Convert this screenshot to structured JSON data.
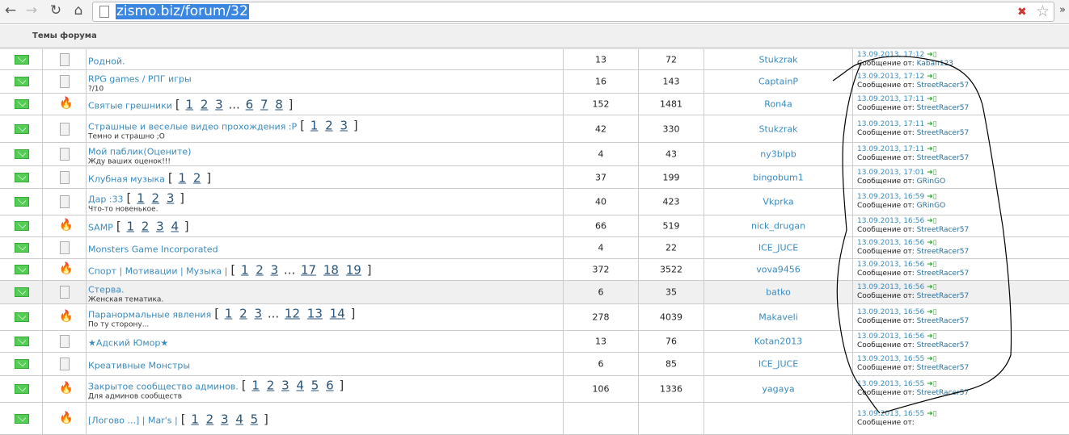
{
  "browser": {
    "url": "zismo.biz/forum/32"
  },
  "header": {
    "title": "Темы форума"
  },
  "last_post_by_label": "Сообщение от:",
  "topics": [
    {
      "icon": "doc",
      "title": "Родной.",
      "subtitle": "",
      "pages": [],
      "replies": "13",
      "views": "72",
      "author": "Stukzrak",
      "last_date": "13.09.2013, 17:12",
      "last_user": "Kaban123"
    },
    {
      "icon": "doc",
      "title": "RPG games / РПГ игры",
      "subtitle": "?/10",
      "pages": [],
      "replies": "16",
      "views": "143",
      "author": "CaptainP",
      "last_date": "13.09.2013, 17:12",
      "last_user": "StreetRacer57"
    },
    {
      "icon": "fire",
      "title": "Святые грешники",
      "subtitle": "",
      "pages": [
        "1",
        "2",
        "3",
        "...",
        "6",
        "7",
        "8"
      ],
      "replies": "152",
      "views": "1481",
      "author": "Ron4a",
      "last_date": "13.09.2013, 17:11",
      "last_user": "StreetRacer57"
    },
    {
      "icon": "doc",
      "title": "Страшные и веселые видео прохождения :P",
      "subtitle": "Темно и страшно ;O",
      "pages": [
        "1",
        "2",
        "3"
      ],
      "replies": "42",
      "views": "330",
      "author": "Stukzrak",
      "last_date": "13.09.2013, 17:11",
      "last_user": "StreetRacer57"
    },
    {
      "icon": "doc",
      "title": "Мой паблик(Оцените)",
      "subtitle": "Жду ваших оценок!!!",
      "pages": [],
      "replies": "4",
      "views": "43",
      "author": "ny3blpb",
      "last_date": "13.09.2013, 17:11",
      "last_user": "StreetRacer57"
    },
    {
      "icon": "doc",
      "title": "Клубная музыка",
      "subtitle": "",
      "pages": [
        "1",
        "2"
      ],
      "replies": "37",
      "views": "199",
      "author": "bingobum1",
      "last_date": "13.09.2013, 17:01",
      "last_user": "GRinGO"
    },
    {
      "icon": "doc",
      "title": "Дар :33",
      "subtitle": "Что-то новенькое.",
      "pages": [
        "1",
        "2",
        "3"
      ],
      "replies": "40",
      "views": "423",
      "author": "Vkprka",
      "last_date": "13.09.2013, 16:59",
      "last_user": "GRinGO"
    },
    {
      "icon": "fire",
      "title": "SAMP",
      "subtitle": "",
      "pages": [
        "1",
        "2",
        "3",
        "4"
      ],
      "replies": "66",
      "views": "519",
      "author": "nick_drugan",
      "last_date": "13.09.2013, 16:56",
      "last_user": "StreetRacer57"
    },
    {
      "icon": "doc",
      "title": "Monsters Game Incorporated",
      "subtitle": "",
      "pages": [],
      "replies": "4",
      "views": "22",
      "author": "ICE_JUCE",
      "last_date": "13.09.2013, 16:56",
      "last_user": "StreetRacer57"
    },
    {
      "icon": "fire",
      "title": "Спорт | Мотивации | Музыка |",
      "subtitle": "",
      "pages": [
        "1",
        "2",
        "3",
        "...",
        "17",
        "18",
        "19"
      ],
      "replies": "372",
      "views": "3522",
      "author": "vova9456",
      "last_date": "13.09.2013, 16:56",
      "last_user": "StreetRacer57"
    },
    {
      "icon": "doc",
      "title": "Стерва.",
      "subtitle": "Женская тематика.",
      "pages": [],
      "replies": "6",
      "views": "35",
      "author": "batko",
      "last_date": "13.09.2013, 16:56",
      "last_user": "StreetRacer57",
      "highlight": true
    },
    {
      "icon": "fire",
      "title": "Паранормальные явления",
      "subtitle": "По ту сторону...",
      "pages": [
        "1",
        "2",
        "3",
        "...",
        "12",
        "13",
        "14"
      ],
      "replies": "278",
      "views": "4039",
      "author": "Makaveli",
      "last_date": "13.09.2013, 16:56",
      "last_user": "StreetRacer57"
    },
    {
      "icon": "doc",
      "title": "★Адский Юмор★",
      "subtitle": "",
      "pages": [],
      "replies": "13",
      "views": "76",
      "author": "Kotan2013",
      "last_date": "13.09.2013, 16:56",
      "last_user": "StreetRacer57"
    },
    {
      "icon": "doc",
      "title": "Креативные Монстры",
      "subtitle": "",
      "pages": [],
      "replies": "6",
      "views": "85",
      "author": "ICE_JUCE",
      "last_date": "13.09.2013, 16:55",
      "last_user": "StreetRacer57"
    },
    {
      "icon": "fire",
      "title": "Закрытое сообщество админов.",
      "subtitle": "Для админов сообществ",
      "pages": [
        "1",
        "2",
        "3",
        "4",
        "5",
        "6"
      ],
      "replies": "106",
      "views": "1336",
      "author": "yagaya",
      "last_date": "13.09.2013, 16:55",
      "last_user": "StreetRacer57"
    },
    {
      "icon": "fire",
      "title": "[Логово ...] | Mar's |",
      "subtitle": "",
      "pages": [
        "1",
        "2",
        "3",
        "4",
        "5"
      ],
      "replies": "",
      "views": "",
      "author": "",
      "last_date": "13.09.2013, 16:55",
      "last_user": ""
    }
  ]
}
